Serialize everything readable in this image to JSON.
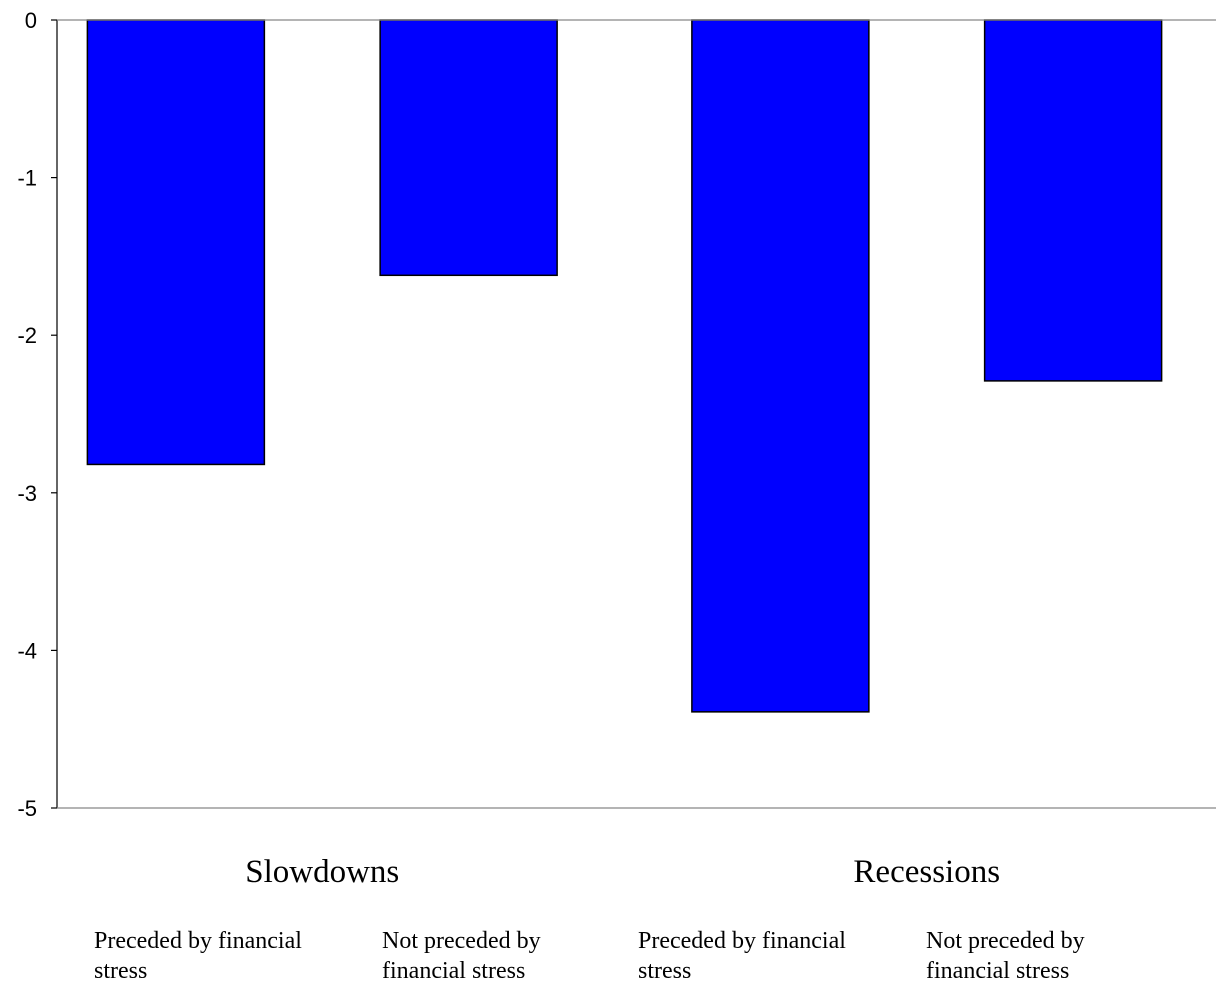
{
  "chart_data": {
    "type": "bar",
    "categories": [
      [
        "Preceded by financial",
        "stress"
      ],
      [
        "Not preceded by",
        "financial stress"
      ],
      [
        "Preceded by financial",
        "stress"
      ],
      [
        "Not preceded by",
        "financial stress"
      ]
    ],
    "groups": [
      {
        "label": "Slowdowns",
        "category_indices": [
          0,
          1
        ]
      },
      {
        "label": "Recessions",
        "category_indices": [
          2,
          3
        ]
      }
    ],
    "values": [
      -2.82,
      -1.62,
      -4.39,
      -2.29
    ],
    "ylim": [
      -5,
      0
    ],
    "yticks": [
      0,
      -1,
      -2,
      -3,
      -4,
      -5
    ],
    "ytick_labels": [
      "0",
      "-1",
      "-2",
      "-3",
      "-4",
      "-5"
    ],
    "title": "",
    "xlabel": "",
    "ylabel": "",
    "grid": false,
    "legend": "none",
    "bar_color": "#0000FF",
    "bar_edge_color": "#000000"
  }
}
